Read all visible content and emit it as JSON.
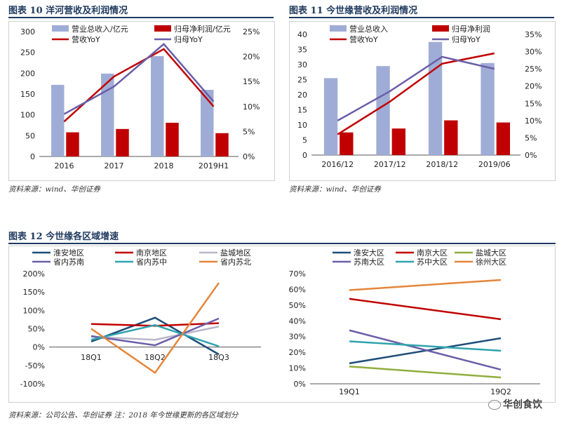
{
  "figures": [
    {
      "title": "图表 10    洋河营收及利润情况",
      "source": "资料来源：wind、华创证券"
    },
    {
      "title": "图表 11    今世缘营收及利润情况",
      "source": "资料来源：wind、华创证券"
    },
    {
      "title": "图表 12    今世缘各区域增速",
      "source": "资料来源：公司公告、华创证券    注：2018 年今世缘更新的各区域划分"
    }
  ],
  "watermark": "华创食饮",
  "colors": {
    "bar_rev": "#9fadd6",
    "bar_profit": "#c00000",
    "line_rev": "#c00000",
    "line_profit": "#6b5ea8",
    "title": "#1f3a5f"
  },
  "chart_data": [
    {
      "type": "bar",
      "combo": "bar+line dual axis",
      "categories": [
        "2016",
        "2017",
        "2018",
        "2019H1"
      ],
      "series": [
        {
          "name": "营业总收入/亿元",
          "kind": "bar",
          "axis": "left",
          "values": [
            172,
            199,
            241,
            160
          ]
        },
        {
          "name": "归母净利润/亿元",
          "kind": "bar",
          "axis": "left",
          "values": [
            58,
            66,
            81,
            56
          ]
        },
        {
          "name": "营收YoY",
          "kind": "line",
          "axis": "right",
          "values": [
            0.07,
            0.16,
            0.215,
            0.1
          ]
        },
        {
          "name": "归母YoY",
          "kind": "line",
          "axis": "right",
          "values": [
            0.085,
            0.14,
            0.225,
            0.11
          ]
        }
      ],
      "ylim": [
        0,
        300
      ],
      "yticks": [
        "0",
        "50",
        "100",
        "150",
        "200",
        "250",
        "300"
      ],
      "y2lim": [
        0,
        0.25
      ],
      "y2ticks": [
        "0%",
        "5%",
        "10%",
        "15%",
        "20%",
        "25%"
      ],
      "legend": "top"
    },
    {
      "type": "bar",
      "combo": "bar+line dual axis",
      "categories": [
        "2016/12",
        "2017/12",
        "2018/12",
        "2019/06"
      ],
      "series": [
        {
          "name": "营业总收入",
          "kind": "bar",
          "axis": "left",
          "values": [
            25.5,
            29.5,
            37.5,
            30.5
          ]
        },
        {
          "name": "归母净利润",
          "kind": "bar",
          "axis": "left",
          "values": [
            7.5,
            8.8,
            11.5,
            10.8
          ]
        },
        {
          "name": "营收YoY",
          "kind": "line",
          "axis": "right",
          "values": [
            0.06,
            0.155,
            0.265,
            0.295
          ]
        },
        {
          "name": "归母YoY",
          "kind": "line",
          "axis": "right",
          "values": [
            0.1,
            0.185,
            0.285,
            0.25
          ]
        }
      ],
      "ylim": [
        0,
        40
      ],
      "yticks": [
        "0",
        "5",
        "10",
        "15",
        "20",
        "25",
        "30",
        "35",
        "40"
      ],
      "y2lim": [
        0,
        0.35
      ],
      "y2ticks": [
        "0%",
        "5%",
        "10%",
        "15%",
        "20%",
        "25%",
        "30%",
        "35%"
      ],
      "legend": "top"
    },
    {
      "type": "line",
      "categories": [
        "18Q1",
        "18Q2",
        "18Q3"
      ],
      "series": [
        {
          "name": "淮安地区",
          "color": "#1f4e79",
          "values": [
            0.15,
            0.8,
            -0.2
          ]
        },
        {
          "name": "南京地区",
          "color": "#c00000",
          "values": [
            0.63,
            0.58,
            0.65
          ]
        },
        {
          "name": "盐城地区",
          "color": "#b7b7c8",
          "values": [
            0.28,
            0.2,
            0.56
          ]
        },
        {
          "name": "省内苏南",
          "color": "#6b5ea8",
          "values": [
            0.3,
            0.05,
            0.78
          ]
        },
        {
          "name": "省内苏中",
          "color": "#2fa3ad",
          "values": [
            0.2,
            0.6,
            0.02
          ]
        },
        {
          "name": "省内苏北",
          "color": "#e5853a",
          "values": [
            0.5,
            -0.7,
            1.75
          ]
        }
      ],
      "ylim": [
        -1.0,
        2.0
      ],
      "yticks": [
        "-100%",
        "-50%",
        "0%",
        "50%",
        "100%",
        "150%",
        "200%"
      ],
      "legend": "top"
    },
    {
      "type": "line",
      "categories": [
        "19Q1",
        "19Q2"
      ],
      "series": [
        {
          "name": "淮安大区",
          "color": "#1f4e79",
          "values": [
            0.13,
            0.29
          ]
        },
        {
          "name": "南京大区",
          "color": "#c00000",
          "values": [
            0.54,
            0.41
          ]
        },
        {
          "name": "盐城大区",
          "color": "#8fae3c",
          "values": [
            0.11,
            0.04
          ]
        },
        {
          "name": "苏南大区",
          "color": "#6b5ea8",
          "values": [
            0.34,
            0.09
          ]
        },
        {
          "name": "苏中大区",
          "color": "#2fa3ad",
          "values": [
            0.27,
            0.21
          ]
        },
        {
          "name": "徐州大区",
          "color": "#e5853a",
          "values": [
            0.595,
            0.66
          ]
        }
      ],
      "ylim": [
        0,
        0.7
      ],
      "yticks": [
        "0%",
        "10%",
        "20%",
        "30%",
        "40%",
        "50%",
        "60%",
        "70%"
      ],
      "legend": "top"
    }
  ]
}
